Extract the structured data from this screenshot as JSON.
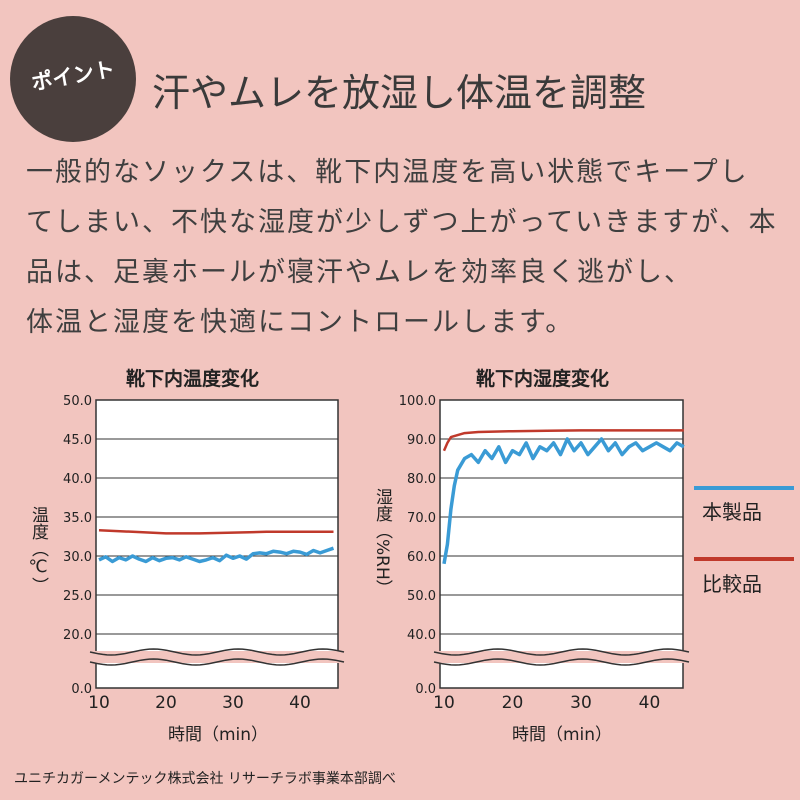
{
  "badge": "ポイント",
  "heading": "汗やムレを放湿し体温を調整",
  "body_lines": [
    "一般的なソックスは、靴下内温度を高い状態でキープし",
    "てしまい、不快な湿度が少しずつ上がっていきますが、本",
    "品は、足裏ホールが寝汗やムレを効率良く逃がし、",
    "体温と湿度を快適にコントロールします。"
  ],
  "legend": {
    "product": "本製品",
    "compare": "比較品",
    "product_color": "#3a9bd5",
    "compare_color": "#c0392b"
  },
  "footer": "ユニチカガーメンテック株式会社 リサーチラボ事業本部調べ",
  "chart_data": [
    {
      "type": "line",
      "title": "靴下内温度変化",
      "ylabel": "温度（℃）",
      "xlabel": "時間（min）",
      "xlim": [
        10,
        45
      ],
      "xticks": [
        "10",
        "20",
        "30",
        "40"
      ],
      "yticks": [
        "50.0",
        "45.0",
        "40.0",
        "35.0",
        "30.0",
        "25.0",
        "20.0",
        "0.0"
      ],
      "axis_break": true,
      "series": [
        {
          "name": "本製品",
          "x": [
            10,
            11,
            12,
            13,
            14,
            15,
            16,
            17,
            18,
            19,
            20,
            21,
            22,
            23,
            24,
            25,
            26,
            27,
            28,
            29,
            30,
            31,
            32,
            33,
            34,
            35,
            36,
            37,
            38,
            39,
            40,
            41,
            42,
            43,
            44,
            45
          ],
          "values": [
            29.5,
            29.9,
            29.3,
            29.8,
            29.5,
            30.0,
            29.6,
            29.3,
            29.8,
            29.4,
            29.7,
            29.8,
            29.5,
            29.9,
            29.6,
            29.3,
            29.5,
            29.8,
            29.4,
            30.1,
            29.7,
            30.0,
            29.6,
            30.3,
            30.4,
            30.3,
            30.6,
            30.5,
            30.3,
            30.6,
            30.5,
            30.2,
            30.7,
            30.4,
            30.7,
            31.0
          ]
        },
        {
          "name": "比較品",
          "x": [
            10,
            15,
            20,
            25,
            30,
            35,
            40,
            45
          ],
          "values": [
            33.3,
            33.1,
            32.9,
            32.9,
            33.0,
            33.1,
            33.1,
            33.1
          ]
        }
      ]
    },
    {
      "type": "line",
      "title": "靴下内湿度変化",
      "ylabel": "湿度（%RH）",
      "xlabel": "時間（min）",
      "xlim": [
        10,
        45
      ],
      "xticks": [
        "10",
        "20",
        "30",
        "40"
      ],
      "yticks": [
        "100.0",
        "90.0",
        "80.0",
        "70.0",
        "60.0",
        "50.0",
        "40.0",
        "0.0"
      ],
      "axis_break": true,
      "series": [
        {
          "name": "本製品",
          "x": [
            10,
            10.5,
            11,
            11.5,
            12,
            13,
            14,
            15,
            16,
            17,
            18,
            19,
            20,
            21,
            22,
            23,
            24,
            25,
            26,
            27,
            28,
            29,
            30,
            31,
            32,
            33,
            34,
            35,
            36,
            37,
            38,
            39,
            40,
            41,
            42,
            43,
            44,
            45
          ],
          "values": [
            58,
            63,
            72,
            78,
            82,
            85,
            86,
            84,
            87,
            85,
            88,
            84,
            87,
            86,
            89,
            85,
            88,
            87,
            89,
            86,
            90,
            87,
            89,
            86,
            88,
            90,
            87,
            89,
            86,
            88,
            89,
            87,
            88,
            89,
            88,
            87,
            89,
            88
          ]
        },
        {
          "name": "比較品",
          "x": [
            10,
            10.5,
            11,
            12,
            13,
            15,
            20,
            25,
            30,
            35,
            40,
            45
          ],
          "values": [
            87,
            89,
            90.5,
            91,
            91.5,
            91.8,
            92,
            92.1,
            92.2,
            92.2,
            92.2,
            92.2
          ]
        }
      ]
    }
  ]
}
